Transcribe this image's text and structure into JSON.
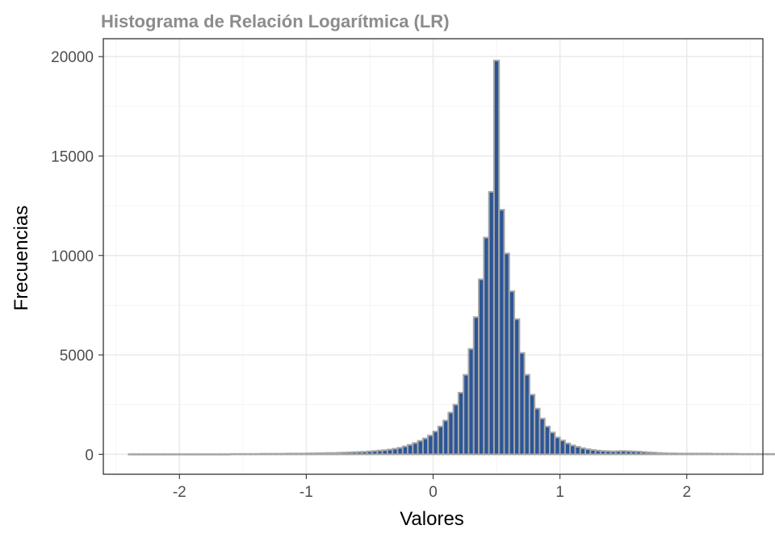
{
  "chart_data": {
    "type": "bar",
    "title": "Histograma de Relación Logarítmica (LR)",
    "xlabel": "Valores",
    "ylabel": "Frecuencias",
    "xlim": [
      -2.6,
      2.6
    ],
    "ylim": [
      -1000,
      20900
    ],
    "x_ticks": [
      {
        "value": -2,
        "label": "-2"
      },
      {
        "value": -1,
        "label": "-1"
      },
      {
        "value": 0,
        "label": "0"
      },
      {
        "value": 1,
        "label": "1"
      },
      {
        "value": 2,
        "label": "2"
      }
    ],
    "y_ticks": [
      {
        "value": 0,
        "label": "0"
      },
      {
        "value": 5000,
        "label": "5000"
      },
      {
        "value": 10000,
        "label": "10000"
      },
      {
        "value": 15000,
        "label": "15000"
      },
      {
        "value": 20000,
        "label": "20000"
      }
    ],
    "grid": true,
    "bin_width": 0.04,
    "bin_start": -2.4,
    "counts": [
      10,
      10,
      10,
      10,
      10,
      10,
      10,
      10,
      10,
      10,
      10,
      10,
      10,
      10,
      10,
      10,
      10,
      10,
      10,
      10,
      20,
      20,
      20,
      20,
      20,
      20,
      30,
      30,
      30,
      30,
      30,
      40,
      40,
      40,
      40,
      50,
      50,
      60,
      60,
      70,
      70,
      80,
      90,
      100,
      110,
      120,
      130,
      150,
      170,
      190,
      210,
      240,
      280,
      330,
      400,
      480,
      570,
      680,
      800,
      950,
      1150,
      1400,
      1700,
      2100,
      2500,
      3100,
      4000,
      5300,
      6900,
      8800,
      10900,
      13200,
      19800,
      12300,
      10100,
      8200,
      6800,
      5100,
      4000,
      3000,
      2300,
      1800,
      1400,
      1100,
      850,
      700,
      550,
      450,
      380,
      310,
      260,
      220,
      190,
      170,
      160,
      150,
      160,
      170,
      160,
      150,
      140,
      120,
      100,
      90,
      70,
      60,
      50,
      50,
      40,
      40,
      40,
      40,
      40,
      40,
      40,
      30,
      30,
      30,
      30,
      30,
      20,
      20,
      20,
      20,
      20,
      20,
      20,
      20,
      20,
      10
    ],
    "bar_fill": "#2b5597",
    "bar_outline": "#a6a6a6"
  }
}
